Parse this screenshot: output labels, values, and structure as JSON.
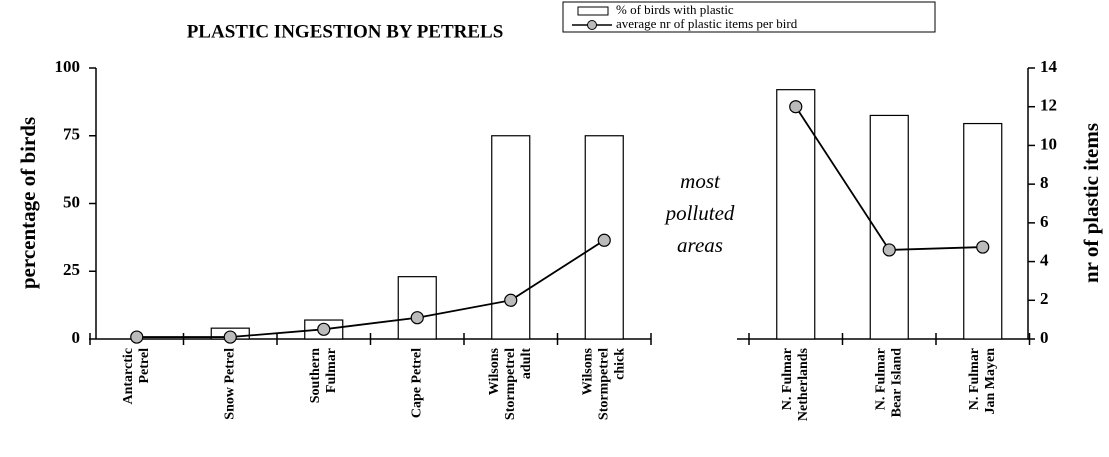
{
  "chart_data": {
    "type": "bar_line",
    "title": "PLASTIC INGESTION BY PETRELS",
    "ylabel": "percentage of birds",
    "y2label": "nr of plastic items",
    "annotation": [
      "most",
      "polluted",
      "areas"
    ],
    "ylim": [
      0,
      100
    ],
    "yticks": [
      0,
      25,
      50,
      75,
      100
    ],
    "y2lim": [
      0,
      14
    ],
    "y2ticks": [
      0,
      2,
      4,
      6,
      8,
      10,
      12,
      14
    ],
    "series": [
      {
        "name": "% of birds with plastic",
        "color": "#ffffff"
      },
      {
        "name": "average nr of plastic items per bird",
        "color": "#bbbbbb",
        "axis": "y2"
      }
    ],
    "panels": [
      {
        "categories": [
          [
            "Antarctic",
            "Petrel"
          ],
          [
            "Snow Petrel"
          ],
          [
            "Southern",
            "Fulmar"
          ],
          [
            "Cape Petrel"
          ],
          [
            "Wilsons",
            "Stormpetrel",
            "adult"
          ],
          [
            "Wilsons",
            "Stormpetrel",
            "chick"
          ]
        ],
        "bars": [
          0,
          4,
          7,
          23,
          75,
          75
        ],
        "line": [
          0.1,
          0.1,
          0.5,
          1.1,
          2.0,
          5.1
        ]
      },
      {
        "categories": [
          [
            "N. Fulmar",
            "Netherlands"
          ],
          [
            "N. Fulmar",
            "Bear Island"
          ],
          [
            "N. Fulmar",
            "Jan Mayen"
          ]
        ],
        "bars": [
          92,
          82.5,
          79.5
        ],
        "line": [
          12.0,
          4.6,
          4.75
        ]
      }
    ]
  }
}
